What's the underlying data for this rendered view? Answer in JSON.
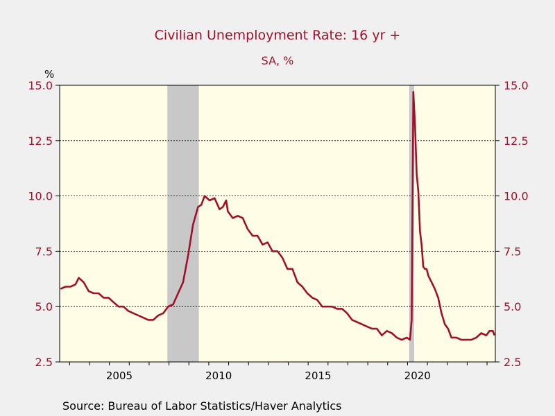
{
  "title": "Civilian Unemployment Rate: 16 yr +",
  "subtitle": "SA, %",
  "y_unit": "%",
  "source": "Source:  Bureau of Labor Statistics/Haver Analytics",
  "colors": {
    "line": "#a0102a",
    "plot_bg": "#fffde6",
    "recession": "#c8c8c8",
    "axis_label": "#a0102a",
    "background": "#f0f0f0"
  },
  "chart_data": {
    "type": "line",
    "title": "Civilian Unemployment Rate: 16 yr +",
    "subtitle": "SA, %",
    "xlabel": "",
    "ylabel": "%",
    "ylim": [
      2.5,
      15.0
    ],
    "xlim": [
      "2002-07",
      "2024-06"
    ],
    "y_ticks": [
      "2.5",
      "5.0",
      "7.5",
      "10.0",
      "12.5",
      "15.0"
    ],
    "x_ticks": [
      "2005",
      "2010",
      "2015",
      "2020"
    ],
    "grid": "horizontal dashed at 5.0, 7.5, 10.0, 12.5",
    "dual_y_axis": true,
    "recessions": [
      {
        "start": "2007-12",
        "end": "2009-06"
      },
      {
        "start": "2020-02",
        "end": "2020-04"
      }
    ],
    "series": [
      {
        "values": [
          {
            "x": "2002-07",
            "y": 5.8
          },
          {
            "x": "2002-10",
            "y": 5.9
          },
          {
            "x": "2003-01",
            "y": 5.9
          },
          {
            "x": "2003-04",
            "y": 6.0
          },
          {
            "x": "2003-06",
            "y": 6.3
          },
          {
            "x": "2003-09",
            "y": 6.1
          },
          {
            "x": "2003-12",
            "y": 5.7
          },
          {
            "x": "2004-03",
            "y": 5.6
          },
          {
            "x": "2004-06",
            "y": 5.6
          },
          {
            "x": "2004-09",
            "y": 5.4
          },
          {
            "x": "2004-12",
            "y": 5.4
          },
          {
            "x": "2005-03",
            "y": 5.2
          },
          {
            "x": "2005-06",
            "y": 5.0
          },
          {
            "x": "2005-09",
            "y": 5.0
          },
          {
            "x": "2005-12",
            "y": 4.8
          },
          {
            "x": "2006-03",
            "y": 4.7
          },
          {
            "x": "2006-06",
            "y": 4.6
          },
          {
            "x": "2006-09",
            "y": 4.5
          },
          {
            "x": "2006-12",
            "y": 4.4
          },
          {
            "x": "2007-03",
            "y": 4.4
          },
          {
            "x": "2007-06",
            "y": 4.6
          },
          {
            "x": "2007-09",
            "y": 4.7
          },
          {
            "x": "2007-12",
            "y": 5.0
          },
          {
            "x": "2008-03",
            "y": 5.1
          },
          {
            "x": "2008-06",
            "y": 5.6
          },
          {
            "x": "2008-09",
            "y": 6.1
          },
          {
            "x": "2008-12",
            "y": 7.3
          },
          {
            "x": "2009-03",
            "y": 8.7
          },
          {
            "x": "2009-06",
            "y": 9.5
          },
          {
            "x": "2009-08",
            "y": 9.6
          },
          {
            "x": "2009-10",
            "y": 10.0
          },
          {
            "x": "2010-01",
            "y": 9.8
          },
          {
            "x": "2010-04",
            "y": 9.9
          },
          {
            "x": "2010-07",
            "y": 9.4
          },
          {
            "x": "2010-09",
            "y": 9.5
          },
          {
            "x": "2010-11",
            "y": 9.8
          },
          {
            "x": "2010-12",
            "y": 9.3
          },
          {
            "x": "2011-03",
            "y": 9.0
          },
          {
            "x": "2011-06",
            "y": 9.1
          },
          {
            "x": "2011-09",
            "y": 9.0
          },
          {
            "x": "2011-12",
            "y": 8.5
          },
          {
            "x": "2012-03",
            "y": 8.2
          },
          {
            "x": "2012-06",
            "y": 8.2
          },
          {
            "x": "2012-09",
            "y": 7.8
          },
          {
            "x": "2012-12",
            "y": 7.9
          },
          {
            "x": "2013-03",
            "y": 7.5
          },
          {
            "x": "2013-06",
            "y": 7.5
          },
          {
            "x": "2013-09",
            "y": 7.2
          },
          {
            "x": "2013-12",
            "y": 6.7
          },
          {
            "x": "2014-03",
            "y": 6.7
          },
          {
            "x": "2014-06",
            "y": 6.1
          },
          {
            "x": "2014-09",
            "y": 5.9
          },
          {
            "x": "2014-12",
            "y": 5.6
          },
          {
            "x": "2015-03",
            "y": 5.4
          },
          {
            "x": "2015-06",
            "y": 5.3
          },
          {
            "x": "2015-09",
            "y": 5.0
          },
          {
            "x": "2015-12",
            "y": 5.0
          },
          {
            "x": "2016-03",
            "y": 5.0
          },
          {
            "x": "2016-06",
            "y": 4.9
          },
          {
            "x": "2016-09",
            "y": 4.9
          },
          {
            "x": "2016-12",
            "y": 4.7
          },
          {
            "x": "2017-03",
            "y": 4.4
          },
          {
            "x": "2017-06",
            "y": 4.3
          },
          {
            "x": "2017-09",
            "y": 4.2
          },
          {
            "x": "2017-12",
            "y": 4.1
          },
          {
            "x": "2018-03",
            "y": 4.0
          },
          {
            "x": "2018-06",
            "y": 4.0
          },
          {
            "x": "2018-09",
            "y": 3.7
          },
          {
            "x": "2018-12",
            "y": 3.9
          },
          {
            "x": "2019-03",
            "y": 3.8
          },
          {
            "x": "2019-06",
            "y": 3.6
          },
          {
            "x": "2019-09",
            "y": 3.5
          },
          {
            "x": "2019-12",
            "y": 3.6
          },
          {
            "x": "2020-02",
            "y": 3.5
          },
          {
            "x": "2020-03",
            "y": 4.4
          },
          {
            "x": "2020-04",
            "y": 14.7
          },
          {
            "x": "2020-05",
            "y": 13.2
          },
          {
            "x": "2020-06",
            "y": 11.0
          },
          {
            "x": "2020-07",
            "y": 10.2
          },
          {
            "x": "2020-08",
            "y": 8.4
          },
          {
            "x": "2020-09",
            "y": 7.8
          },
          {
            "x": "2020-10",
            "y": 6.8
          },
          {
            "x": "2020-11",
            "y": 6.7
          },
          {
            "x": "2020-12",
            "y": 6.7
          },
          {
            "x": "2021-01",
            "y": 6.4
          },
          {
            "x": "2021-03",
            "y": 6.1
          },
          {
            "x": "2021-05",
            "y": 5.8
          },
          {
            "x": "2021-07",
            "y": 5.4
          },
          {
            "x": "2021-09",
            "y": 4.7
          },
          {
            "x": "2021-11",
            "y": 4.2
          },
          {
            "x": "2022-01",
            "y": 4.0
          },
          {
            "x": "2022-03",
            "y": 3.6
          },
          {
            "x": "2022-06",
            "y": 3.6
          },
          {
            "x": "2022-09",
            "y": 3.5
          },
          {
            "x": "2022-12",
            "y": 3.5
          },
          {
            "x": "2023-03",
            "y": 3.5
          },
          {
            "x": "2023-06",
            "y": 3.6
          },
          {
            "x": "2023-09",
            "y": 3.8
          },
          {
            "x": "2023-12",
            "y": 3.7
          },
          {
            "x": "2024-02",
            "y": 3.9
          },
          {
            "x": "2024-04",
            "y": 3.9
          },
          {
            "x": "2024-05",
            "y": 3.7
          }
        ]
      }
    ]
  }
}
